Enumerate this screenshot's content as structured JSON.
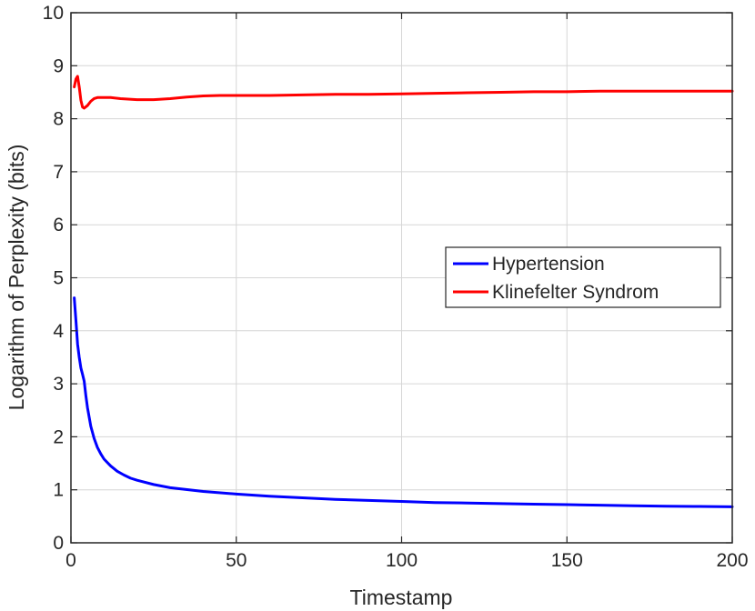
{
  "chart_data": {
    "type": "line",
    "title": "",
    "xlabel": "Timestamp",
    "ylabel": "Logarithm of Perplexity (bits)",
    "xlim": [
      0,
      200
    ],
    "ylim": [
      0,
      10
    ],
    "xticks": [
      0,
      50,
      100,
      150,
      200
    ],
    "yticks": [
      0,
      1,
      2,
      3,
      4,
      5,
      6,
      7,
      8,
      9,
      10
    ],
    "grid": true,
    "legend_position": "center-right",
    "series": [
      {
        "name": "Hypertension",
        "color": "#0000ff",
        "x": [
          1,
          1.5,
          2,
          2.5,
          3,
          3.5,
          4,
          4.5,
          5,
          6,
          7,
          8,
          9,
          10,
          12,
          14,
          16,
          18,
          20,
          25,
          30,
          40,
          50,
          60,
          70,
          80,
          90,
          100,
          110,
          120,
          130,
          140,
          150,
          160,
          170,
          180,
          190,
          200
        ],
        "y": [
          4.62,
          4.2,
          3.75,
          3.5,
          3.3,
          3.18,
          3.05,
          2.78,
          2.55,
          2.2,
          1.97,
          1.8,
          1.68,
          1.58,
          1.45,
          1.35,
          1.28,
          1.22,
          1.18,
          1.1,
          1.04,
          0.97,
          0.92,
          0.88,
          0.85,
          0.82,
          0.8,
          0.78,
          0.76,
          0.75,
          0.74,
          0.73,
          0.72,
          0.71,
          0.7,
          0.69,
          0.685,
          0.68
        ]
      },
      {
        "name": "Klinefelter Syndrom",
        "color": "#ff0000",
        "x": [
          1,
          1.5,
          2,
          2.5,
          3,
          3.5,
          4,
          5,
          6,
          7,
          8,
          10,
          12,
          15,
          20,
          25,
          30,
          35,
          40,
          45,
          50,
          60,
          70,
          80,
          90,
          100,
          110,
          120,
          130,
          140,
          150,
          160,
          170,
          180,
          190,
          200
        ],
        "y": [
          8.6,
          8.75,
          8.8,
          8.6,
          8.35,
          8.22,
          8.2,
          8.25,
          8.33,
          8.38,
          8.4,
          8.4,
          8.4,
          8.38,
          8.36,
          8.36,
          8.38,
          8.41,
          8.43,
          8.44,
          8.44,
          8.44,
          8.45,
          8.46,
          8.46,
          8.47,
          8.48,
          8.49,
          8.5,
          8.51,
          8.51,
          8.52,
          8.52,
          8.52,
          8.52,
          8.52
        ]
      }
    ]
  }
}
